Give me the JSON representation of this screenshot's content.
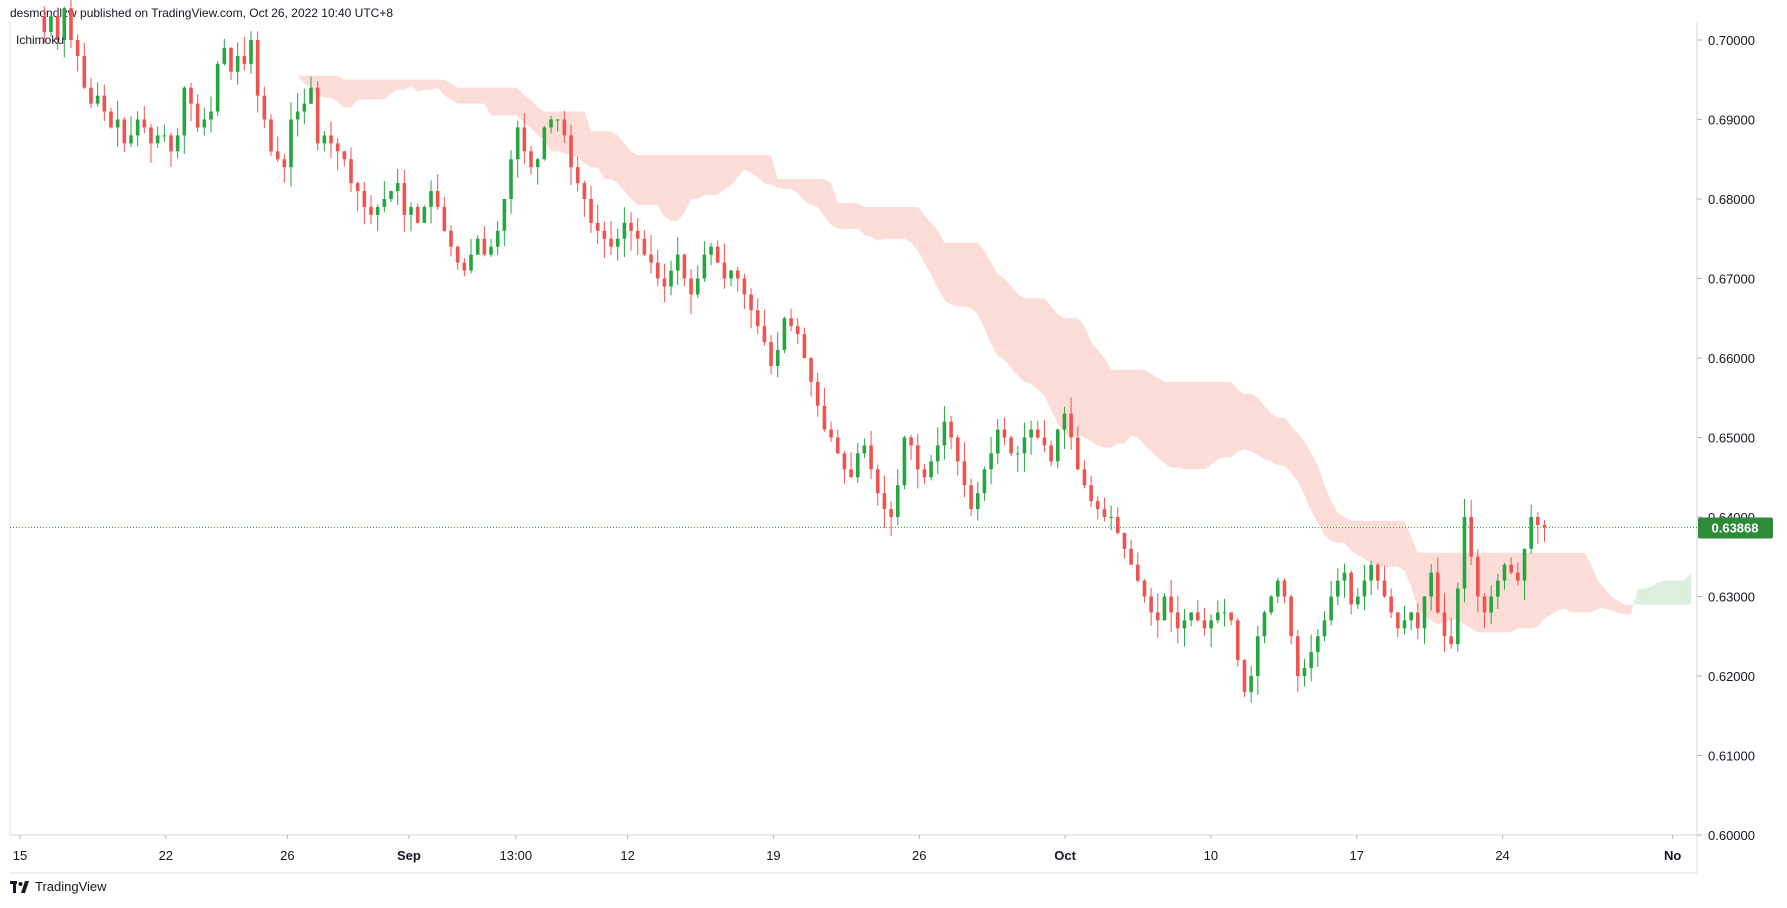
{
  "header": {
    "text": "desmondlzw published on TradingView.com, Oct 26, 2022 10:40 UTC+8"
  },
  "footer": {
    "brand": "TradingView"
  },
  "chart_data": {
    "type": "candlestick",
    "indicator": "Ichimoku",
    "ylim": [
      0.6,
      0.7
    ],
    "y_ticks": [
      "0.70000",
      "0.69000",
      "0.68000",
      "0.67000",
      "0.66000",
      "0.65000",
      "0.64000",
      "0.63000",
      "0.62000",
      "0.61000",
      "0.60000"
    ],
    "x_ticks": [
      {
        "label": "15",
        "bold": false,
        "bar": 0
      },
      {
        "label": "22",
        "bold": false,
        "bar": 30
      },
      {
        "label": "26",
        "bold": false,
        "bar": 55
      },
      {
        "label": "Sep",
        "bold": true,
        "bar": 80
      },
      {
        "label": "13:00",
        "bold": false,
        "bar": 102
      },
      {
        "label": "12",
        "bold": false,
        "bar": 125
      },
      {
        "label": "19",
        "bold": false,
        "bar": 155
      },
      {
        "label": "26",
        "bold": false,
        "bar": 185
      },
      {
        "label": "Oct",
        "bold": true,
        "bar": 215
      },
      {
        "label": "10",
        "bold": false,
        "bar": 245
      },
      {
        "label": "17",
        "bold": false,
        "bar": 275
      },
      {
        "label": "24",
        "bold": false,
        "bar": 305
      },
      {
        "label": "No",
        "bold": true,
        "bar": 340
      }
    ],
    "last_price": "0.63868",
    "last_price_value": 0.63868,
    "colors": {
      "up": "#26a641",
      "down": "#ef5350",
      "cloud_bear": "#fcdcd7",
      "cloud_bull": "#dcefdc",
      "price_line": "#26a641",
      "price_tag": "#2e8b3a"
    },
    "candles_close": [
      0.701,
      0.703,
      0.7,
      0.704,
      0.7,
      0.698,
      0.694,
      0.692,
      0.693,
      0.691,
      0.689,
      0.69,
      0.687,
      0.688,
      0.69,
      0.689,
      0.687,
      0.688,
      0.688,
      0.686,
      0.688,
      0.694,
      0.692,
      0.689,
      0.69,
      0.691,
      0.697,
      0.699,
      0.696,
      0.698,
      0.697,
      0.7,
      0.693,
      0.69,
      0.686,
      0.685,
      0.684,
      0.69,
      0.691,
      0.692,
      0.694,
      0.687,
      0.688,
      0.687,
      0.686,
      0.685,
      0.682,
      0.681,
      0.679,
      0.678,
      0.679,
      0.68,
      0.681,
      0.682,
      0.678,
      0.679,
      0.677,
      0.679,
      0.681,
      0.679,
      0.676,
      0.674,
      0.672,
      0.671,
      0.673,
      0.675,
      0.673,
      0.674,
      0.676,
      0.68,
      0.685,
      0.689,
      0.686,
      0.684,
      0.685,
      0.689,
      0.69,
      0.69,
      0.688,
      0.684,
      0.682,
      0.68,
      0.677,
      0.676,
      0.675,
      0.674,
      0.675,
      0.677,
      0.676,
      0.675,
      0.673,
      0.672,
      0.67,
      0.669,
      0.671,
      0.673,
      0.67,
      0.668,
      0.67,
      0.673,
      0.674,
      0.672,
      0.67,
      0.671,
      0.67,
      0.668,
      0.666,
      0.664,
      0.662,
      0.659,
      0.661,
      0.665,
      0.664,
      0.663,
      0.66,
      0.657,
      0.654,
      0.651,
      0.65,
      0.648,
      0.646,
      0.645,
      0.648,
      0.649,
      0.646,
      0.643,
      0.641,
      0.64,
      0.644,
      0.65,
      0.649,
      0.646,
      0.645,
      0.647,
      0.649,
      0.652,
      0.65,
      0.647,
      0.644,
      0.641,
      0.643,
      0.646,
      0.648,
      0.651,
      0.65,
      0.648,
      0.648,
      0.65,
      0.651,
      0.65,
      0.649,
      0.647,
      0.651,
      0.653,
      0.65,
      0.646,
      0.644,
      0.642,
      0.641,
      0.64,
      0.64,
      0.638,
      0.636,
      0.634,
      0.632,
      0.63,
      0.628,
      0.627,
      0.63,
      0.628,
      0.626,
      0.627,
      0.628,
      0.627,
      0.626,
      0.627,
      0.628,
      0.628,
      0.627,
      0.622,
      0.618,
      0.62,
      0.625,
      0.628,
      0.63,
      0.632,
      0.63,
      0.625,
      0.62,
      0.621,
      0.623,
      0.625,
      0.627,
      0.63,
      0.632,
      0.633,
      0.629,
      0.63,
      0.632,
      0.634,
      0.632,
      0.63,
      0.628,
      0.626,
      0.627,
      0.628,
      0.626,
      0.63,
      0.633,
      0.628,
      0.625,
      0.624,
      0.631,
      0.64,
      0.635,
      0.63,
      0.628,
      0.63,
      0.632,
      0.634,
      0.633,
      0.632,
      0.636,
      0.64,
      0.639,
      0.6387
    ]
  }
}
